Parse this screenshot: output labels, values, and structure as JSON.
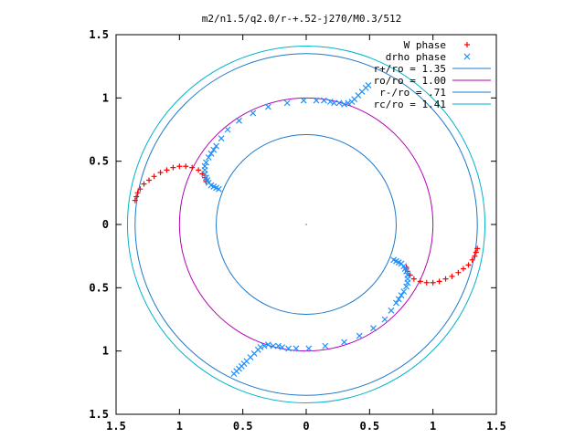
{
  "chart_data": {
    "type": "scatter",
    "title": "m2/n1.5/q2.0/r-+.52-j270/M0.3/512",
    "xlabel": "",
    "ylabel": "",
    "xlim": [
      -1.5,
      1.5
    ],
    "ylim": [
      -1.5,
      1.5
    ],
    "x_tick_labels": [
      "1.5",
      "1",
      "0.5",
      "0",
      "0.5",
      "1",
      "1.5"
    ],
    "y_tick_labels": [
      "1.5",
      "1",
      "0.5",
      "0",
      "0.5",
      "1",
      "1.5"
    ],
    "grid": false,
    "legend_position": "top-right",
    "center_point": [
      0,
      0
    ],
    "series": [
      {
        "name": "W phase",
        "marker": "+",
        "color": "#ff0000",
        "points": [
          [
            -1.35,
            0.19
          ],
          [
            -1.34,
            0.22
          ],
          [
            -1.33,
            0.25
          ],
          [
            -1.31,
            0.28
          ],
          [
            -1.28,
            0.32
          ],
          [
            -1.24,
            0.35
          ],
          [
            -1.2,
            0.38
          ],
          [
            -1.15,
            0.41
          ],
          [
            -1.1,
            0.43
          ],
          [
            -1.05,
            0.45
          ],
          [
            -1.0,
            0.46
          ],
          [
            -0.95,
            0.46
          ],
          [
            -0.9,
            0.45
          ],
          [
            -0.85,
            0.43
          ],
          [
            -0.82,
            0.4
          ],
          [
            -0.8,
            0.37
          ],
          [
            -0.79,
            0.34
          ],
          [
            1.35,
            -0.19
          ],
          [
            1.34,
            -0.22
          ],
          [
            1.33,
            -0.25
          ],
          [
            1.31,
            -0.28
          ],
          [
            1.28,
            -0.32
          ],
          [
            1.24,
            -0.35
          ],
          [
            1.2,
            -0.38
          ],
          [
            1.15,
            -0.41
          ],
          [
            1.1,
            -0.43
          ],
          [
            1.05,
            -0.45
          ],
          [
            1.0,
            -0.46
          ],
          [
            0.95,
            -0.46
          ],
          [
            0.9,
            -0.45
          ],
          [
            0.85,
            -0.43
          ],
          [
            0.82,
            -0.4
          ],
          [
            0.8,
            -0.37
          ],
          [
            0.79,
            -0.34
          ]
        ]
      },
      {
        "name": "drho phase",
        "marker": "x",
        "color": "#1e90ff",
        "points": [
          [
            -0.69,
            0.28
          ],
          [
            -0.71,
            0.29
          ],
          [
            -0.73,
            0.3
          ],
          [
            -0.75,
            0.31
          ],
          [
            -0.77,
            0.33
          ],
          [
            -0.78,
            0.35
          ],
          [
            -0.79,
            0.37
          ],
          [
            -0.8,
            0.4
          ],
          [
            -0.8,
            0.43
          ],
          [
            -0.8,
            0.46
          ],
          [
            -0.79,
            0.49
          ],
          [
            -0.77,
            0.53
          ],
          [
            -0.75,
            0.56
          ],
          [
            -0.73,
            0.59
          ],
          [
            -0.71,
            0.62
          ],
          [
            -0.67,
            0.68
          ],
          [
            -0.62,
            0.75
          ],
          [
            -0.53,
            0.82
          ],
          [
            -0.42,
            0.88
          ],
          [
            -0.3,
            0.93
          ],
          [
            -0.15,
            0.96
          ],
          [
            -0.02,
            0.98
          ],
          [
            0.08,
            0.98
          ],
          [
            0.14,
            0.98
          ],
          [
            0.19,
            0.97
          ],
          [
            0.22,
            0.96
          ],
          [
            0.26,
            0.96
          ],
          [
            0.3,
            0.95
          ],
          [
            0.33,
            0.96
          ],
          [
            0.36,
            0.97
          ],
          [
            0.38,
            0.99
          ],
          [
            0.41,
            1.02
          ],
          [
            0.44,
            1.05
          ],
          [
            0.47,
            1.08
          ],
          [
            0.49,
            1.1
          ],
          [
            0.69,
            -0.28
          ],
          [
            0.71,
            -0.29
          ],
          [
            0.73,
            -0.3
          ],
          [
            0.75,
            -0.31
          ],
          [
            0.77,
            -0.33
          ],
          [
            0.78,
            -0.35
          ],
          [
            0.79,
            -0.37
          ],
          [
            0.8,
            -0.4
          ],
          [
            0.8,
            -0.43
          ],
          [
            0.8,
            -0.46
          ],
          [
            0.79,
            -0.49
          ],
          [
            0.77,
            -0.53
          ],
          [
            0.75,
            -0.56
          ],
          [
            0.73,
            -0.59
          ],
          [
            0.71,
            -0.62
          ],
          [
            0.67,
            -0.68
          ],
          [
            0.62,
            -0.75
          ],
          [
            0.53,
            -0.82
          ],
          [
            0.42,
            -0.88
          ],
          [
            0.3,
            -0.93
          ],
          [
            0.15,
            -0.96
          ],
          [
            0.02,
            -0.98
          ],
          [
            -0.08,
            -0.98
          ],
          [
            -0.14,
            -0.98
          ],
          [
            -0.19,
            -0.97
          ],
          [
            -0.22,
            -0.96
          ],
          [
            -0.26,
            -0.96
          ],
          [
            -0.3,
            -0.95
          ],
          [
            -0.33,
            -0.96
          ],
          [
            -0.36,
            -0.97
          ],
          [
            -0.38,
            -0.99
          ],
          [
            -0.41,
            -1.02
          ],
          [
            -0.44,
            -1.05
          ],
          [
            -0.47,
            -1.08
          ],
          [
            -0.49,
            -1.1
          ],
          [
            -0.51,
            -1.12
          ],
          [
            -0.53,
            -1.14
          ],
          [
            -0.55,
            -1.16
          ],
          [
            -0.57,
            -1.18
          ]
        ]
      }
    ],
    "circles": [
      {
        "name": "r+/ro = 1.35",
        "radius": 1.35,
        "color": "#1e78c8"
      },
      {
        "name": "ro/ro = 1.00",
        "radius": 1.0,
        "color": "#b400b4"
      },
      {
        "name": "r-/ro = .71",
        "radius": 0.71,
        "color": "#1e78c8"
      },
      {
        "name": "rc/ro = 1.41",
        "radius": 1.41,
        "color": "#00b4c8"
      }
    ]
  }
}
